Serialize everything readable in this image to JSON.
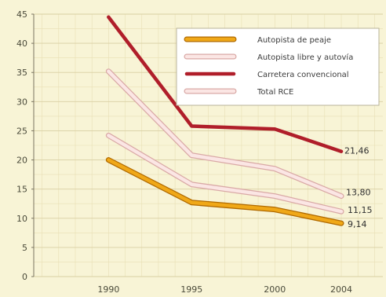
{
  "chart_data": {
    "type": "line",
    "x": [
      1990,
      1995,
      2000,
      2004
    ],
    "xlim": [
      1985.5,
      2006.5
    ],
    "ylim": [
      0,
      45
    ],
    "yticks": [
      0,
      5,
      10,
      15,
      20,
      25,
      30,
      35,
      40,
      45
    ],
    "xlabel": "",
    "ylabel": "",
    "title": "",
    "grid": true,
    "legend_position": "top-right",
    "series": [
      {
        "name": "Autopista de peaje",
        "values": [
          20.0,
          12.7,
          11.5,
          9.14
        ],
        "color": "#f0a818",
        "edge": "#b06a00",
        "style": "band",
        "end_label": "9,14"
      },
      {
        "name": "Autopista libre y autovía",
        "values": [
          24.2,
          15.8,
          13.8,
          11.15
        ],
        "color": "#fbe6e4",
        "edge": "#d9a9a6",
        "style": "band",
        "end_label": "11,15"
      },
      {
        "name": "Carretera convencional",
        "values": [
          44.5,
          25.8,
          25.3,
          21.46
        ],
        "color": "#b01e2a",
        "edge": "#b01e2a",
        "style": "solid",
        "end_label": "21,46"
      },
      {
        "name": "Total RCE",
        "values": [
          35.2,
          20.8,
          18.5,
          13.8
        ],
        "color": "#fbe6e4",
        "edge": "#d9a9a6",
        "style": "band",
        "end_label": "13,80"
      }
    ]
  }
}
